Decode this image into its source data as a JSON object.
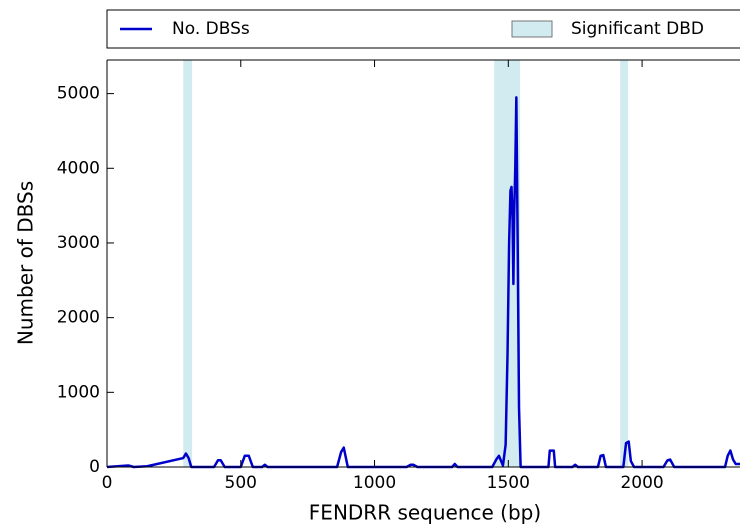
{
  "chart_data": {
    "type": "line",
    "xlabel": "FENDRR sequence (bp)",
    "ylabel": "Number of DBSs",
    "x": [
      0,
      80,
      100,
      150,
      285,
      295,
      305,
      315,
      400,
      415,
      425,
      440,
      500,
      515,
      530,
      545,
      580,
      590,
      600,
      860,
      875,
      885,
      900,
      1120,
      1135,
      1145,
      1160,
      1290,
      1300,
      1310,
      1440,
      1455,
      1465,
      1480,
      1490,
      1497,
      1503,
      1508,
      1512,
      1516,
      1519,
      1522,
      1526,
      1530,
      1535,
      1540,
      1546,
      1650,
      1655,
      1670,
      1675,
      1740,
      1750,
      1760,
      1835,
      1845,
      1855,
      1865,
      1930,
      1940,
      1950,
      1958,
      1970,
      2080,
      2095,
      2105,
      2120,
      2310,
      2320,
      2330,
      2340,
      2350,
      2366
    ],
    "series": [
      {
        "name": "No. DBSs",
        "color": "#0000cc",
        "values": [
          0,
          20,
          0,
          10,
          120,
          180,
          120,
          0,
          0,
          90,
          90,
          0,
          0,
          150,
          150,
          0,
          0,
          30,
          0,
          0,
          200,
          260,
          0,
          0,
          30,
          30,
          0,
          0,
          40,
          0,
          0,
          100,
          150,
          20,
          300,
          1500,
          3000,
          3700,
          3750,
          3300,
          2450,
          3400,
          4000,
          4950,
          3000,
          800,
          0,
          0,
          220,
          220,
          0,
          0,
          30,
          0,
          0,
          150,
          160,
          0,
          0,
          320,
          340,
          80,
          0,
          0,
          90,
          100,
          0,
          0,
          150,
          220,
          100,
          40,
          40
        ]
      }
    ],
    "spans": {
      "name": "Significant DBD",
      "color": "#d2ebf0",
      "ranges": [
        [
          285,
          318
        ],
        [
          1447,
          1544
        ],
        [
          1918,
          1948
        ]
      ]
    },
    "xlim": [
      0,
      2366
    ],
    "ylim": [
      0,
      5450
    ],
    "xticks": [
      0,
      500,
      1000,
      1500,
      2000
    ],
    "yticks": [
      0,
      1000,
      2000,
      3000,
      4000,
      5000
    ]
  }
}
